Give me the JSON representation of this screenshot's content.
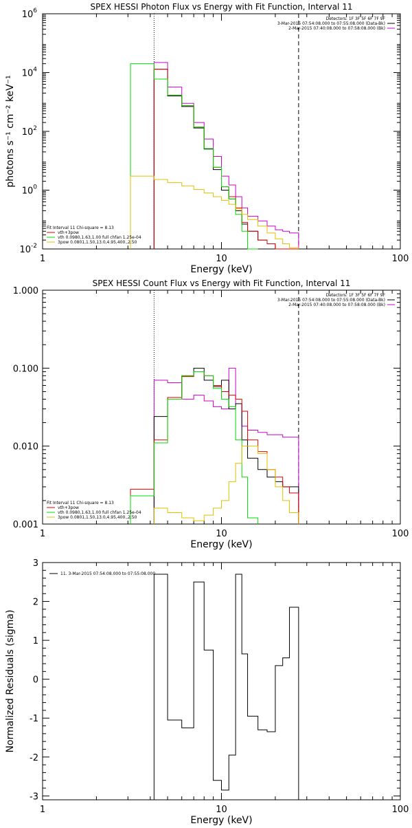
{
  "colors": {
    "total": "#000000",
    "vth_spow": "#e00000",
    "vth": "#00dd00",
    "spow": "#e0c000",
    "background": "#cc00cc"
  },
  "chart_data": [
    {
      "id": "photon",
      "type": "line",
      "title": "SPEX HESSI Photon Flux vs Energy with Fit Function, Interval 11",
      "xlabel": "Energy (keV)",
      "ylabel": "photons s⁻¹ cm⁻² keV⁻¹",
      "xscale": "log",
      "yscale": "log",
      "xlim": [
        1,
        100
      ],
      "ylim": [
        0.01,
        1000000
      ],
      "xticks": [
        {
          "v": 1,
          "label": "1"
        },
        {
          "v": 10,
          "label": "10"
        },
        {
          "v": 100,
          "label": "100"
        }
      ],
      "yticks": [
        {
          "v": 0.01,
          "base": "10",
          "exp": "-2"
        },
        {
          "v": 1,
          "base": "10",
          "exp": "0"
        },
        {
          "v": 100,
          "base": "10",
          "exp": "2"
        },
        {
          "v": 10000,
          "base": "10",
          "exp": "4"
        },
        {
          "v": 1000000,
          "base": "10",
          "exp": "6"
        }
      ],
      "vlines": [
        {
          "x": 4.2,
          "style": "dotted"
        },
        {
          "x": 27,
          "style": "dashed"
        }
      ],
      "legend_top": [
        {
          "text": "Detectors: 1F 3F 5F 6F 7F 9F",
          "color": ""
        },
        {
          "text": "3-Mar-2015 07:54:08.000 to 07:55:08.000 (Data-Bk)",
          "color": "total"
        },
        {
          "text": "2-Mar-2015 07:40:08.000 to 07:58:08.000 (Bk)",
          "color": "background"
        }
      ],
      "legend_fit": [
        {
          "text": "Fit Interval 11     Chi-square = 8.13",
          "color": ""
        },
        {
          "text": "vth+3pow",
          "color": "vth_spow"
        },
        {
          "text": "vth 0.0980,1.63,1.00  full chfan 1.25e-04",
          "color": "vth"
        },
        {
          "text": "3pow 0.0801,1.50,13.0,4.95,400.,2.50",
          "color": "spow"
        }
      ],
      "series": [
        {
          "key": "background",
          "edges": [
            4.2,
            5,
            6,
            7,
            8,
            9,
            10,
            11,
            12,
            13,
            14,
            16,
            18,
            20,
            22,
            24,
            27
          ],
          "values": [
            22000,
            3200,
            900,
            200,
            55,
            14,
            3,
            1.5,
            0.6,
            0.25,
            0.13,
            0.09,
            0.06,
            0.045,
            0.04,
            0.035
          ]
        },
        {
          "key": "total",
          "edges": [
            4.2,
            5,
            6,
            7,
            8,
            9,
            10,
            11,
            12,
            13,
            14,
            16,
            18,
            20,
            22,
            24,
            27
          ],
          "values": [
            13000,
            1600,
            700,
            130,
            25,
            5,
            1,
            0.5,
            0.2,
            0.07,
            0.04,
            0.02,
            0.015,
            0.008,
            0.005,
            0.004
          ]
        },
        {
          "key": "vth_spow",
          "edges": [
            4.2,
            5,
            6,
            7,
            8,
            9,
            10,
            11,
            12,
            13,
            14,
            16,
            18,
            20,
            22,
            24,
            27
          ],
          "values": [
            13000,
            1700,
            750,
            140,
            26,
            6,
            1.3,
            0.6,
            0.25,
            0.08,
            0.04,
            0.02,
            0.015,
            0.008,
            0.005,
            0.004
          ]
        },
        {
          "key": "vth",
          "edges": [
            3.1,
            4.2,
            5,
            6,
            7,
            8,
            9,
            10,
            11,
            12,
            13,
            14,
            16
          ],
          "values": [
            20000,
            6000,
            1700,
            750,
            140,
            26,
            6,
            1.3,
            0.5,
            0.15,
            0.04,
            0.01
          ]
        },
        {
          "key": "spow",
          "edges": [
            3.1,
            4.2,
            5,
            6,
            7,
            8,
            9,
            10,
            11,
            12,
            13,
            14,
            16,
            18,
            20,
            22,
            24,
            27
          ],
          "values": [
            3,
            2.3,
            1.8,
            1.4,
            1.05,
            0.8,
            0.6,
            0.45,
            0.33,
            0.23,
            0.15,
            0.1,
            0.06,
            0.035,
            0.022,
            0.015,
            0.011
          ]
        }
      ]
    },
    {
      "id": "count",
      "type": "line",
      "title": "SPEX HESSI Count Flux vs Energy with Fit Function, Interval 11",
      "xlabel": "Energy (keV)",
      "ylabel": "",
      "xscale": "log",
      "yscale": "log",
      "xlim": [
        1,
        100
      ],
      "ylim": [
        0.001,
        1
      ],
      "xticks": [
        {
          "v": 1,
          "label": "1"
        },
        {
          "v": 10,
          "label": "10"
        },
        {
          "v": 100,
          "label": "100"
        }
      ],
      "yticks": [
        {
          "v": 0.001,
          "label": "0.001"
        },
        {
          "v": 0.01,
          "label": "0.010"
        },
        {
          "v": 0.1,
          "label": "0.100"
        },
        {
          "v": 1,
          "label": "1.000"
        }
      ],
      "vlines": [
        {
          "x": 4.2,
          "style": "dotted"
        },
        {
          "x": 27,
          "style": "dashed"
        }
      ],
      "legend_top": [
        {
          "text": "Detectors: 1F 3F 5F 6F 7F 9F",
          "color": ""
        },
        {
          "text": "3-Mar-2015 07:54:08.000 to 07:55:08.000 (Data-Bk)",
          "color": "total"
        },
        {
          "text": "2-Mar-2015 07:40:08.000 to 07:58:08.000 (Bk)",
          "color": "background"
        }
      ],
      "legend_fit": [
        {
          "text": "Fit Interval 11     Chi-square = 8.13",
          "color": ""
        },
        {
          "text": "vth+3pow",
          "color": "vth_spow"
        },
        {
          "text": "vth 0.0980,1.63,1.00  full chfan 1.25e-04",
          "color": "vth"
        },
        {
          "text": "3pow 0.0801,1.50,13.0,4.95,400.,2.50",
          "color": "spow"
        }
      ],
      "series": [
        {
          "key": "background",
          "edges": [
            4.2,
            5,
            6,
            7,
            8,
            9,
            10,
            11,
            12,
            13,
            14,
            16,
            18,
            20,
            22,
            24,
            27
          ],
          "values": [
            0.07,
            0.065,
            0.04,
            0.045,
            0.038,
            0.032,
            0.03,
            0.1,
            0.035,
            0.018,
            0.016,
            0.015,
            0.014,
            0.014,
            0.013,
            0.013
          ]
        },
        {
          "key": "total",
          "edges": [
            4.2,
            5,
            6,
            7,
            8,
            9,
            10,
            11,
            12,
            13,
            14,
            16,
            18,
            20,
            22,
            24,
            27
          ],
          "values": [
            0.024,
            0.042,
            0.08,
            0.1,
            0.07,
            0.058,
            0.07,
            0.03,
            0.035,
            0.012,
            0.007,
            0.005,
            0.004,
            0.0035,
            0.003,
            0.003
          ]
        },
        {
          "key": "vth_spow",
          "edges": [
            3.1,
            4.2,
            5,
            6,
            7,
            8,
            9,
            10,
            11,
            12,
            13,
            14,
            16,
            18,
            20,
            22,
            24,
            27
          ],
          "values": [
            0.0028,
            0.012,
            0.042,
            0.078,
            0.09,
            0.08,
            0.06,
            0.05,
            0.045,
            0.04,
            0.028,
            0.012,
            0.0085,
            0.005,
            0.004,
            0.003,
            0.0025
          ]
        },
        {
          "key": "vth",
          "edges": [
            3.1,
            4.2,
            5,
            6,
            7,
            8,
            9,
            10,
            11,
            12,
            13,
            14,
            16
          ],
          "values": [
            0.0023,
            0.011,
            0.04,
            0.08,
            0.09,
            0.08,
            0.055,
            0.04,
            0.032,
            0.012,
            0.004,
            0.0012
          ]
        },
        {
          "key": "spow",
          "edges": [
            4.2,
            5,
            6,
            7,
            8,
            9,
            10,
            11,
            12,
            13,
            14,
            16,
            18,
            20,
            22,
            24,
            27
          ],
          "values": [
            0.0016,
            0.0014,
            0.0012,
            0.0011,
            0.0013,
            0.0016,
            0.002,
            0.0035,
            0.006,
            0.01,
            0.01,
            0.008,
            0.005,
            0.003,
            0.002,
            0.0014
          ]
        }
      ]
    },
    {
      "id": "residuals",
      "type": "line",
      "title": "",
      "xlabel": "Energy (keV)",
      "ylabel": "Normalized Residuals (sigma)",
      "xscale": "log",
      "yscale": "linear",
      "xlim": [
        1,
        100
      ],
      "ylim": [
        -3.1,
        3
      ],
      "xticks": [
        {
          "v": 1,
          "label": "1"
        },
        {
          "v": 10,
          "label": "10"
        },
        {
          "v": 100,
          "label": "100"
        }
      ],
      "yticks": [
        {
          "v": -3,
          "label": "-3"
        },
        {
          "v": -2,
          "label": "-2"
        },
        {
          "v": -1,
          "label": "-1"
        },
        {
          "v": 0,
          "label": "0"
        },
        {
          "v": 1,
          "label": "1"
        },
        {
          "v": 2,
          "label": "2"
        },
        {
          "v": 3,
          "label": "3"
        }
      ],
      "vlines": [],
      "legend_top": [],
      "legend_fit": [],
      "legend_left": {
        "text": "11.  3-Mar-2015 07:54:08.000 to 07:55:08.000",
        "color": "total"
      },
      "series": [
        {
          "key": "total",
          "edges": [
            4.2,
            5,
            6,
            7,
            8,
            9,
            10,
            11,
            12,
            13,
            14,
            16,
            18,
            20,
            22,
            24,
            27
          ],
          "values": [
            2.7,
            -1.05,
            -1.25,
            2.5,
            0.75,
            -2.6,
            -2.85,
            -1.95,
            2.7,
            0.65,
            -0.95,
            -1.3,
            -1.35,
            0.35,
            0.55,
            1.85
          ]
        }
      ]
    }
  ]
}
